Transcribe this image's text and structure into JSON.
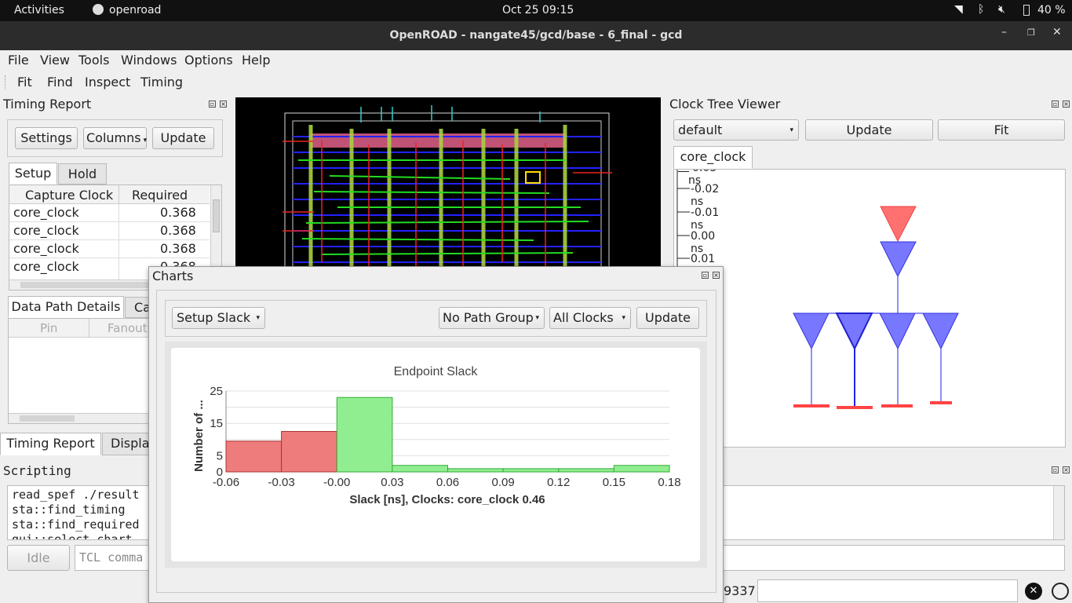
{
  "system_bar": {
    "activities": "Activities",
    "app": "openroad",
    "clock": "Oct 25  09:15",
    "battery": "40 %"
  },
  "window": {
    "title": "OpenROAD - nangate45/gcd/base - 6_final - gcd"
  },
  "menu": [
    "File",
    "View",
    "Tools",
    "Windows",
    "Options",
    "Help"
  ],
  "toolbar": [
    "Fit",
    "Find",
    "Inspect",
    "Timing"
  ],
  "timing_report": {
    "title": "Timing Report",
    "settings": "Settings",
    "columns": "Columns",
    "update": "Update",
    "tabs": [
      "Setup",
      "Hold"
    ],
    "headers": [
      "Capture Clock",
      "Required"
    ],
    "rows": [
      [
        "core_clock",
        "0.368"
      ],
      [
        "core_clock",
        "0.368"
      ],
      [
        "core_clock",
        "0.368"
      ],
      [
        "core_clock",
        "0.368"
      ]
    ],
    "detail_tabs": [
      "Data Path Details",
      "Ca"
    ],
    "detail_headers": [
      "Pin",
      "Fanout"
    ]
  },
  "bottom_tabs": [
    "Timing Report",
    "Display"
  ],
  "scripting": {
    "title": "Scripting",
    "lines": [
      "read_spef ./result",
      "sta::find_timing",
      "sta::find_required",
      "gui::select_chart"
    ],
    "idle": "Idle",
    "placeholder": "TCL comma"
  },
  "clock_tree": {
    "title": "Clock Tree Viewer",
    "select": "default",
    "update": "Update",
    "fit": "Fit",
    "tab": "core_clock",
    "ticks": [
      "-0.03 ns",
      "-0.02 ns",
      "-0.01 ns",
      "0.00 ns",
      "0.01 ns",
      "ns",
      "ns",
      "ns",
      "ns",
      "ns",
      "ns",
      "ns"
    ]
  },
  "statusbar": {
    "coord": "9337"
  },
  "charts": {
    "title": "Charts",
    "mode": "Setup Slack",
    "path_group": "No Path Group",
    "clocks": "All Clocks",
    "update": "Update"
  },
  "chart_data": {
    "type": "bar",
    "title": "Endpoint Slack",
    "xlabel": "Slack [ns], Clocks: core_clock 0.46",
    "ylabel": "Number of ...",
    "x_ticks": [
      "-0.06",
      "-0.03",
      "-0.00",
      "0.03",
      "0.06",
      "0.09",
      "0.12",
      "0.15",
      "0.18"
    ],
    "y_ticks": [
      "0",
      "5",
      "15",
      "25"
    ],
    "ylim": [
      0,
      25
    ],
    "bins": [
      {
        "range": "-0.06 to -0.03",
        "value": 9.5,
        "color": "#ef7c7c"
      },
      {
        "range": "-0.03 to -0.00",
        "value": 12.5,
        "color": "#ef7c7c"
      },
      {
        "range": "-0.00 to 0.03",
        "value": 23,
        "color": "#90ee90"
      },
      {
        "range": "0.03 to 0.06",
        "value": 2,
        "color": "#90ee90"
      },
      {
        "range": "0.06 to 0.09",
        "value": 1,
        "color": "#90ee90"
      },
      {
        "range": "0.09 to 0.12",
        "value": 1,
        "color": "#90ee90"
      },
      {
        "range": "0.12 to 0.15",
        "value": 1,
        "color": "#90ee90"
      },
      {
        "range": "0.15 to 0.18",
        "value": 2,
        "color": "#90ee90"
      }
    ]
  }
}
